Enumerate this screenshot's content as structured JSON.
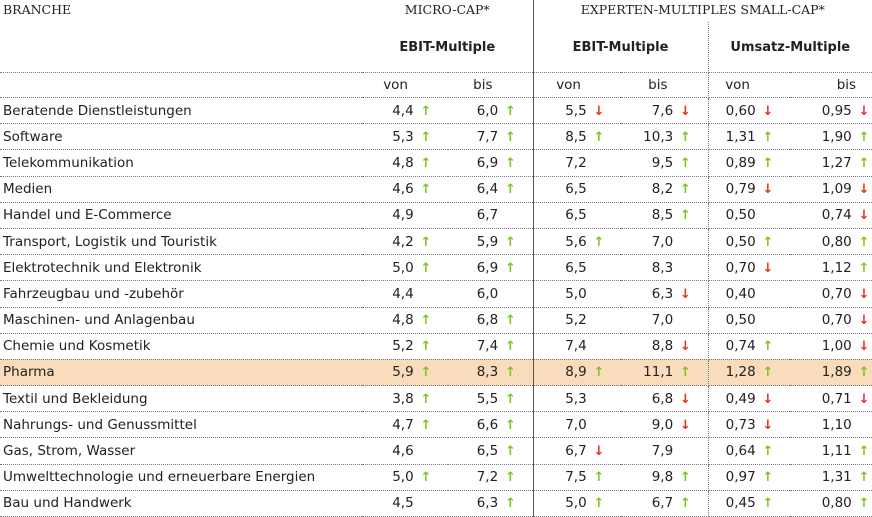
{
  "header": {
    "branche": "BRANCHE",
    "micro": "MICRO-CAP*",
    "experten": "EXPERTEN-MULTIPLES SMALL-CAP*",
    "ebit1": "EBIT-Multiple",
    "ebit2": "EBIT-Multiple",
    "umsatz": "Umsatz-Multiple",
    "von": "von",
    "bis": "bis"
  },
  "colors": {
    "up": "#7cc520",
    "down": "#e8321f",
    "highlight": "#f8dcbb"
  },
  "rows": [
    {
      "name": "Beratende Dienstleistungen",
      "cells": [
        [
          "4,4",
          "up"
        ],
        [
          "6,0",
          "up"
        ],
        [
          "5,5",
          "down"
        ],
        [
          "7,6",
          "down"
        ],
        [
          "0,60",
          "down"
        ],
        [
          "0,95",
          "down"
        ]
      ]
    },
    {
      "name": "Software",
      "cells": [
        [
          "5,3",
          "up"
        ],
        [
          "7,7",
          "up"
        ],
        [
          "8,5",
          "up"
        ],
        [
          "10,3",
          "up"
        ],
        [
          "1,31",
          "up"
        ],
        [
          "1,90",
          "up"
        ]
      ]
    },
    {
      "name": "Telekommunikation",
      "cells": [
        [
          "4,8",
          "up"
        ],
        [
          "6,9",
          "up"
        ],
        [
          "7,2",
          ""
        ],
        [
          "9,5",
          "up"
        ],
        [
          "0,89",
          "up"
        ],
        [
          "1,27",
          "up"
        ]
      ]
    },
    {
      "name": "Medien",
      "cells": [
        [
          "4,6",
          "up"
        ],
        [
          "6,4",
          "up"
        ],
        [
          "6,5",
          ""
        ],
        [
          "8,2",
          "up"
        ],
        [
          "0,79",
          "down"
        ],
        [
          "1,09",
          "down"
        ]
      ]
    },
    {
      "name": "Handel und E-Commerce",
      "cells": [
        [
          "4,9",
          ""
        ],
        [
          "6,7",
          ""
        ],
        [
          "6,5",
          ""
        ],
        [
          "8,5",
          "up"
        ],
        [
          "0,50",
          ""
        ],
        [
          "0,74",
          "down"
        ]
      ]
    },
    {
      "name": "Transport, Logistik und Touristik",
      "cells": [
        [
          "4,2",
          "up"
        ],
        [
          "5,9",
          "up"
        ],
        [
          "5,6",
          "up"
        ],
        [
          "7,0",
          ""
        ],
        [
          "0,50",
          "up"
        ],
        [
          "0,80",
          "up"
        ]
      ]
    },
    {
      "name": "Elektrotechnik und Elektronik",
      "cells": [
        [
          "5,0",
          "up"
        ],
        [
          "6,9",
          "up"
        ],
        [
          "6,5",
          ""
        ],
        [
          "8,3",
          ""
        ],
        [
          "0,70",
          "down"
        ],
        [
          "1,12",
          "up"
        ]
      ]
    },
    {
      "name": "Fahrzeugbau und -zubehör",
      "cells": [
        [
          "4,4",
          ""
        ],
        [
          "6,0",
          ""
        ],
        [
          "5,0",
          ""
        ],
        [
          "6,3",
          "down"
        ],
        [
          "0,40",
          ""
        ],
        [
          "0,70",
          "down"
        ]
      ]
    },
    {
      "name": "Maschinen- und Anlagenbau",
      "cells": [
        [
          "4,8",
          "up"
        ],
        [
          "6,8",
          "up"
        ],
        [
          "5,2",
          ""
        ],
        [
          "7,0",
          ""
        ],
        [
          "0,50",
          ""
        ],
        [
          "0,70",
          "down"
        ]
      ]
    },
    {
      "name": "Chemie und Kosmetik",
      "cells": [
        [
          "5,2",
          "up"
        ],
        [
          "7,4",
          "up"
        ],
        [
          "7,4",
          ""
        ],
        [
          "8,8",
          "down"
        ],
        [
          "0,74",
          "up"
        ],
        [
          "1,00",
          "down"
        ]
      ]
    },
    {
      "name": "Pharma",
      "highlight": true,
      "cells": [
        [
          "5,9",
          "up"
        ],
        [
          "8,3",
          "up"
        ],
        [
          "8,9",
          "up"
        ],
        [
          "11,1",
          "up"
        ],
        [
          "1,28",
          "up"
        ],
        [
          "1,89",
          "up"
        ]
      ]
    },
    {
      "name": "Textil und Bekleidung",
      "cells": [
        [
          "3,8",
          "up"
        ],
        [
          "5,5",
          "up"
        ],
        [
          "5,3",
          ""
        ],
        [
          "6,8",
          "down"
        ],
        [
          "0,49",
          "down"
        ],
        [
          "0,71",
          "down"
        ]
      ]
    },
    {
      "name": "Nahrungs- und Genussmittel",
      "cells": [
        [
          "4,7",
          "up"
        ],
        [
          "6,6",
          "up"
        ],
        [
          "7,0",
          ""
        ],
        [
          "9,0",
          "down"
        ],
        [
          "0,73",
          "down"
        ],
        [
          "1,10",
          ""
        ]
      ]
    },
    {
      "name": "Gas, Strom, Wasser",
      "cells": [
        [
          "4,6",
          ""
        ],
        [
          "6,5",
          "up"
        ],
        [
          "6,7",
          "down"
        ],
        [
          "7,9",
          ""
        ],
        [
          "0,64",
          "up"
        ],
        [
          "1,11",
          "up"
        ]
      ]
    },
    {
      "name": "Umwelttechnologie und erneuerbare Energien",
      "cells": [
        [
          "5,0",
          "up"
        ],
        [
          "7,2",
          "up"
        ],
        [
          "7,5",
          "up"
        ],
        [
          "9,8",
          "up"
        ],
        [
          "0,97",
          "up"
        ],
        [
          "1,31",
          "up"
        ]
      ]
    },
    {
      "name": "Bau und Handwerk",
      "cells": [
        [
          "4,5",
          ""
        ],
        [
          "6,3",
          "up"
        ],
        [
          "5,0",
          "up"
        ],
        [
          "6,7",
          "up"
        ],
        [
          "0,45",
          "up"
        ],
        [
          "0,80",
          "up"
        ]
      ]
    }
  ]
}
